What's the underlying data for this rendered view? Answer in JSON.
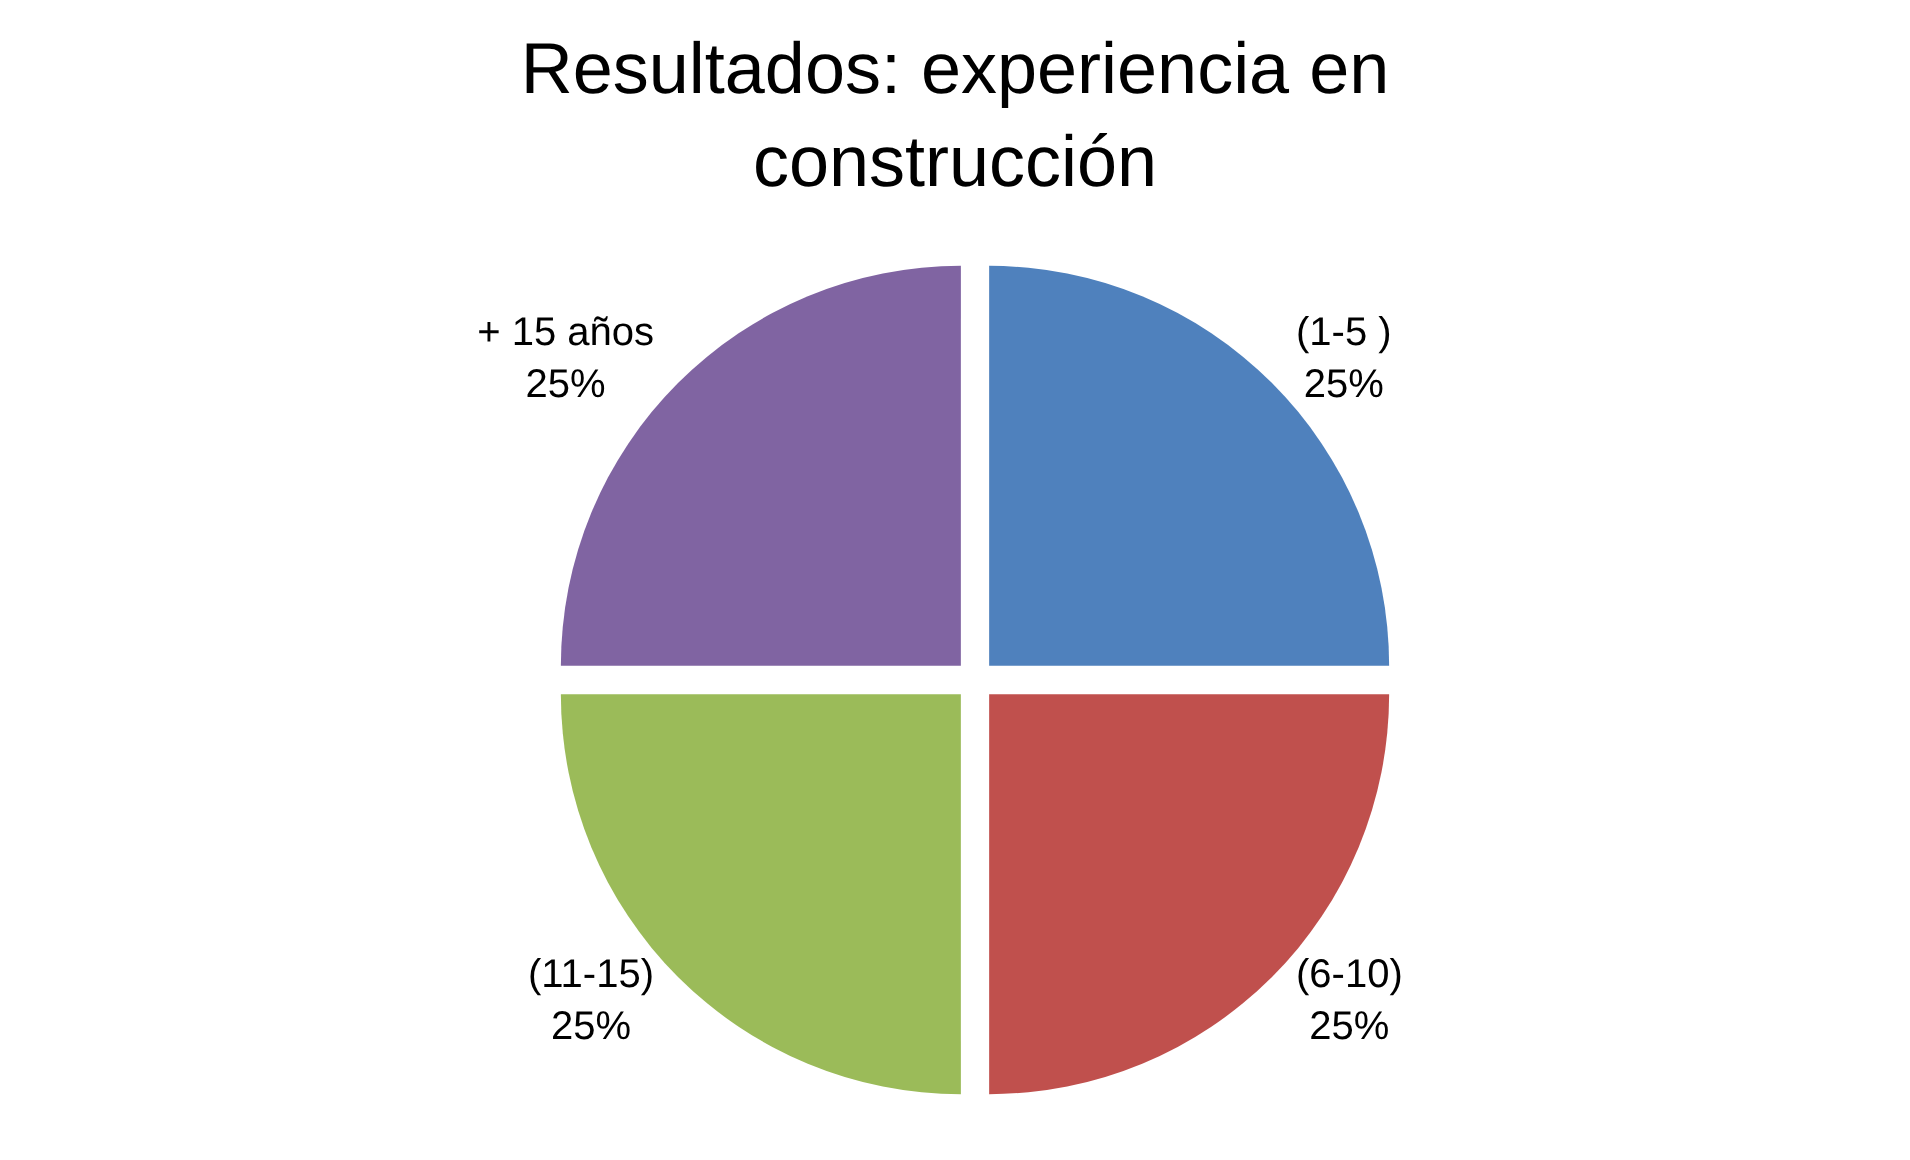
{
  "chart_data": {
    "type": "pie",
    "title": "Resultados: experiencia en construcción",
    "categories": [
      "(1-5 )",
      "(6-10)",
      "(11-15)",
      "+ 15 años"
    ],
    "values": [
      25,
      25,
      25,
      25
    ],
    "value_labels": [
      "25%",
      "25%",
      "25%",
      "25%"
    ],
    "colors": [
      "#4f81bd",
      "#c0504d",
      "#9bbb59",
      "#8064a2"
    ],
    "legend": false
  }
}
